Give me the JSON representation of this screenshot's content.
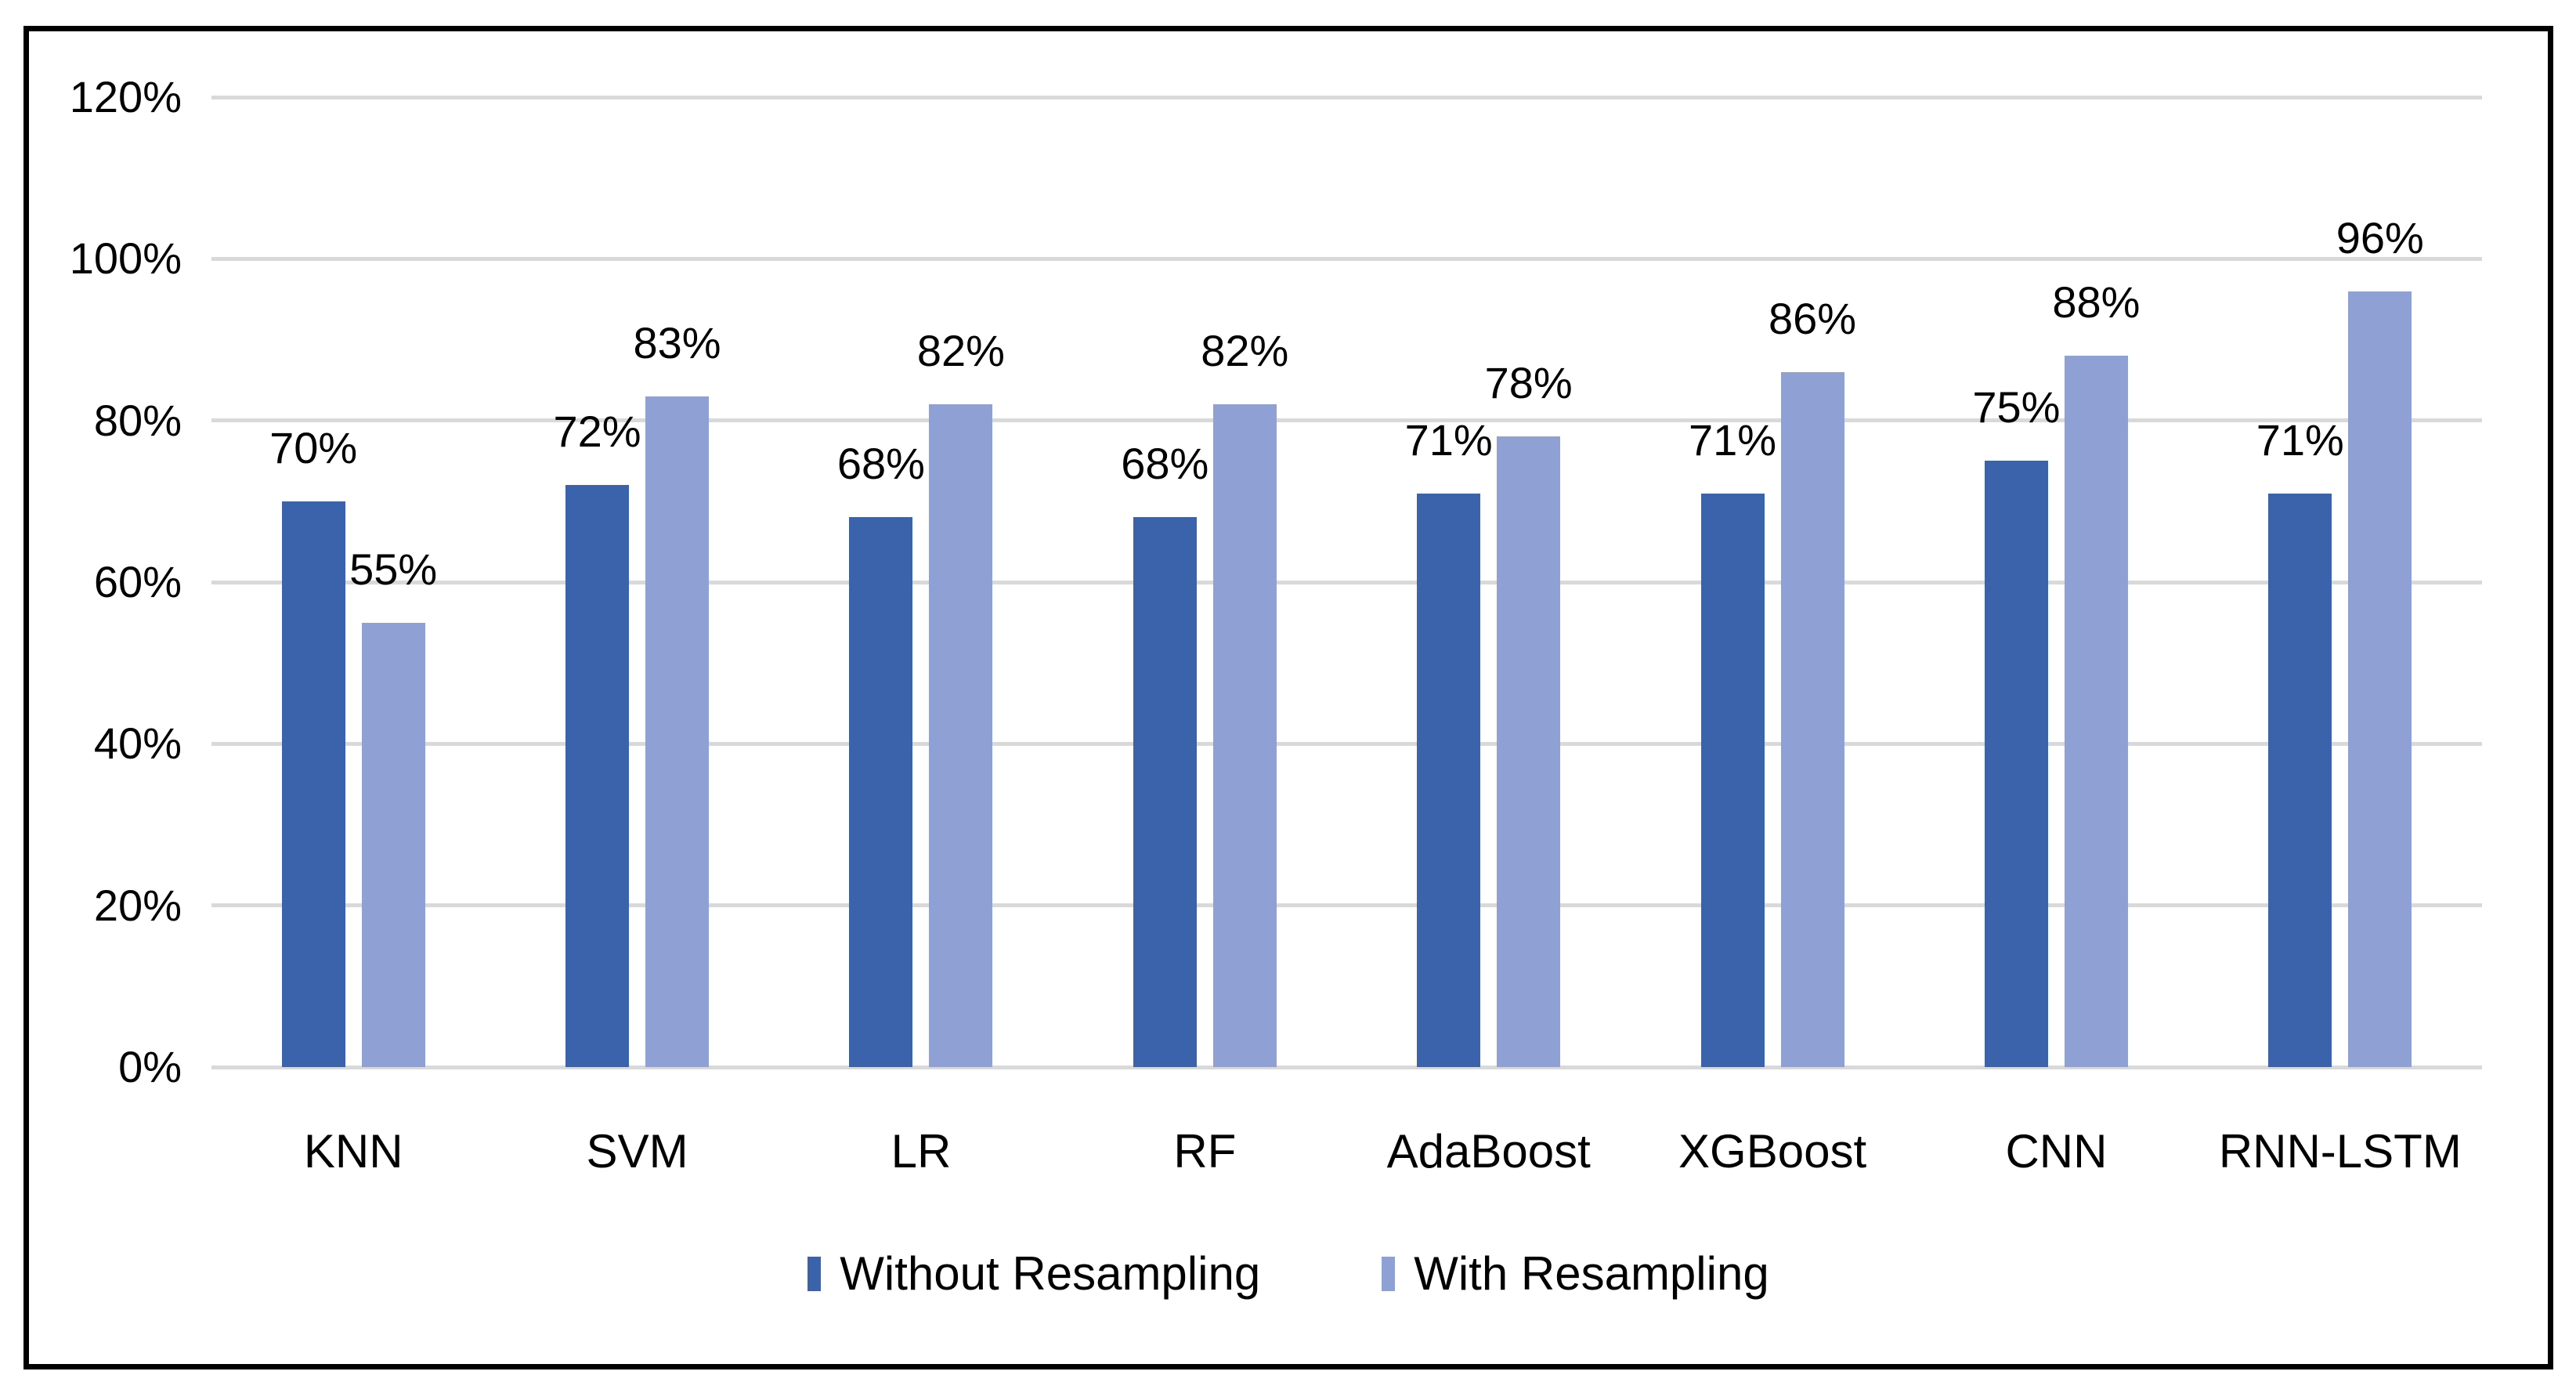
{
  "chart_data": {
    "type": "bar",
    "title": "",
    "categories": [
      "KNN",
      "SVM",
      "LR",
      "RF",
      "AdaBoost",
      "XGBoost",
      "CNN",
      "RNN-LSTM"
    ],
    "series": [
      {
        "name": "Without Resampling",
        "color": "#3B63AC",
        "values": [
          70,
          72,
          68,
          68,
          71,
          71,
          75,
          71
        ]
      },
      {
        "name": "With Resampling",
        "color": "#8FA0D4",
        "values": [
          55,
          83,
          82,
          82,
          78,
          86,
          88,
          96
        ]
      }
    ],
    "data_label_suffix": "%",
    "y_axis": {
      "min": 0,
      "max": 120,
      "step": 20,
      "tick_labels": [
        "0%",
        "20%",
        "40%",
        "60%",
        "80%",
        "100%",
        "120%"
      ]
    },
    "grid": true,
    "gridline_color": "#D9D9D9",
    "frame_border_color": "#000000",
    "bar_label_color": "#000000",
    "legend_position": "bottom-center"
  }
}
